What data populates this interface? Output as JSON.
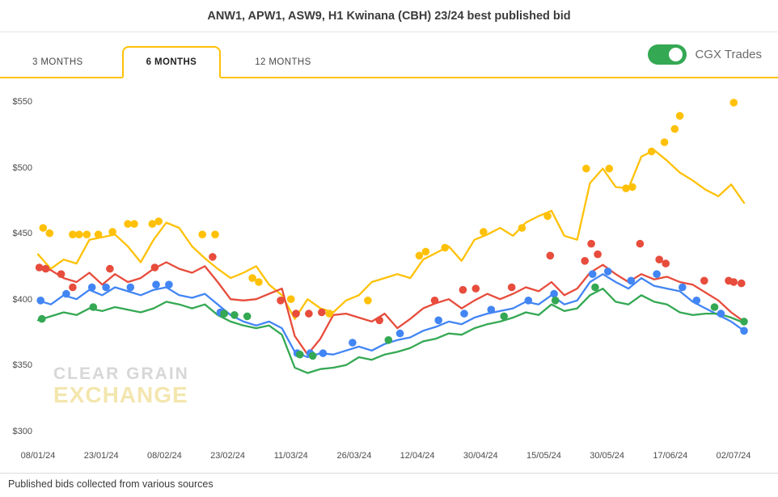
{
  "header": {
    "title": "ANW1, APW1, ASW9, H1 Kwinana (CBH) 23/24 best published bid"
  },
  "tabs": [
    {
      "label": "3 MONTHS",
      "active": false
    },
    {
      "label": "6 MONTHS",
      "active": true
    },
    {
      "label": "12 MONTHS",
      "active": false
    }
  ],
  "toggle": {
    "label": "CGX Trades",
    "state": "on",
    "color": "#34A853"
  },
  "watermark": {
    "line1": "CLEAR GRAIN",
    "line2": "EXCHANGE",
    "line1_color": "#d7d7d7",
    "line2_color": "#f3e6ae"
  },
  "footer": {
    "note": "Published bids collected from various sources"
  },
  "chart_data": {
    "type": "line",
    "title": "ANW1, APW1, ASW9, H1 Kwinana (CBH) 23/24 best published bid",
    "xlabel": "",
    "ylabel": "",
    "ylim": [
      300,
      550
    ],
    "grid": false,
    "legend_position": "none",
    "x_tick_labels": [
      "08/01/24",
      "23/01/24",
      "08/02/24",
      "23/02/24",
      "11/03/24",
      "26/03/24",
      "12/04/24",
      "30/04/24",
      "15/05/24",
      "30/05/24",
      "17/06/24",
      "02/07/24"
    ],
    "y_ticks": [
      {
        "label": "$550",
        "value": 550
      },
      {
        "label": "$500",
        "value": 500
      },
      {
        "label": "$450",
        "value": 450
      },
      {
        "label": "$400",
        "value": 400
      },
      {
        "label": "$350",
        "value": 350
      },
      {
        "label": "$300",
        "value": 300
      }
    ],
    "series": [
      {
        "name": "yellow-line",
        "color": "#FFC107",
        "values": [
          435,
          424,
          431,
          428,
          446,
          448,
          450,
          441,
          429,
          446,
          459,
          455,
          441,
          432,
          424,
          417,
          421,
          426,
          412,
          404,
          386,
          401,
          394,
          391,
          400,
          404,
          414,
          417,
          420,
          417,
          431,
          436,
          441,
          430,
          446,
          450,
          455,
          449,
          459,
          464,
          468,
          449,
          446,
          489,
          500,
          486,
          485,
          509,
          514,
          506,
          497,
          491,
          484,
          479,
          488,
          474
        ]
      },
      {
        "name": "red-line",
        "color": "#E74C3C",
        "values": [
          424,
          423,
          417,
          414,
          421,
          412,
          420,
          414,
          417,
          424,
          429,
          424,
          421,
          426,
          414,
          401,
          400,
          401,
          405,
          409,
          373,
          359,
          371,
          389,
          390,
          387,
          384,
          390,
          379,
          386,
          394,
          398,
          401,
          394,
          400,
          405,
          401,
          405,
          410,
          407,
          414,
          404,
          409,
          421,
          427,
          420,
          414,
          420,
          416,
          418,
          414,
          412,
          406,
          400,
          391,
          384
        ]
      },
      {
        "name": "blue-line",
        "color": "#4285F4",
        "values": [
          400,
          397,
          404,
          401,
          408,
          404,
          410,
          407,
          404,
          408,
          410,
          404,
          402,
          405,
          397,
          389,
          384,
          381,
          384,
          379,
          361,
          357,
          360,
          359,
          362,
          365,
          362,
          367,
          370,
          372,
          377,
          380,
          384,
          382,
          387,
          390,
          392,
          394,
          399,
          397,
          404,
          397,
          400,
          414,
          420,
          414,
          409,
          417,
          411,
          409,
          407,
          399,
          394,
          389,
          384,
          377
        ]
      },
      {
        "name": "green-line",
        "color": "#34A853",
        "values": [
          385,
          388,
          391,
          389,
          394,
          392,
          395,
          393,
          391,
          394,
          399,
          397,
          394,
          397,
          389,
          384,
          381,
          379,
          381,
          374,
          349,
          345,
          348,
          349,
          351,
          357,
          355,
          359,
          361,
          364,
          369,
          371,
          375,
          374,
          379,
          382,
          384,
          387,
          391,
          389,
          397,
          392,
          394,
          404,
          409,
          399,
          397,
          404,
          399,
          397,
          391,
          389,
          390,
          390,
          387,
          383
        ]
      }
    ],
    "scatter": [
      {
        "name": "yellow-trades",
        "color": "#FFC107",
        "points": [
          [
            0.4,
            455
          ],
          [
            0.9,
            451
          ],
          [
            2.7,
            450
          ],
          [
            3.2,
            450
          ],
          [
            3.8,
            450
          ],
          [
            4.7,
            450
          ],
          [
            5.8,
            452
          ],
          [
            7.0,
            458
          ],
          [
            7.5,
            458
          ],
          [
            8.9,
            458
          ],
          [
            9.4,
            460
          ],
          [
            12.8,
            450
          ],
          [
            13.8,
            450
          ],
          [
            16.7,
            417
          ],
          [
            17.2,
            414
          ],
          [
            19.7,
            401
          ],
          [
            22.7,
            390
          ],
          [
            25.7,
            400
          ],
          [
            29.7,
            434
          ],
          [
            30.2,
            437
          ],
          [
            31.7,
            440
          ],
          [
            34.7,
            452
          ],
          [
            37.7,
            455
          ],
          [
            39.7,
            464
          ],
          [
            42.7,
            500
          ],
          [
            44.5,
            500
          ],
          [
            45.8,
            485
          ],
          [
            46.3,
            486
          ],
          [
            47.8,
            513
          ],
          [
            48.8,
            520
          ],
          [
            49.6,
            530
          ],
          [
            50.0,
            540
          ],
          [
            54.2,
            550
          ]
        ]
      },
      {
        "name": "red-trades",
        "color": "#E74C3C",
        "points": [
          [
            0.1,
            425
          ],
          [
            0.6,
            424
          ],
          [
            1.8,
            420
          ],
          [
            2.7,
            410
          ],
          [
            5.6,
            424
          ],
          [
            9.1,
            425
          ],
          [
            13.6,
            433
          ],
          [
            18.9,
            400
          ],
          [
            20.1,
            390
          ],
          [
            21.1,
            390
          ],
          [
            22.1,
            391
          ],
          [
            26.6,
            385
          ],
          [
            30.9,
            400
          ],
          [
            33.1,
            408
          ],
          [
            34.1,
            409
          ],
          [
            36.9,
            410
          ],
          [
            39.9,
            434
          ],
          [
            42.6,
            430
          ],
          [
            43.1,
            443
          ],
          [
            43.6,
            435
          ],
          [
            46.9,
            443
          ],
          [
            48.4,
            431
          ],
          [
            48.9,
            428
          ],
          [
            51.9,
            415
          ],
          [
            53.8,
            415
          ],
          [
            54.2,
            414
          ],
          [
            54.8,
            413
          ]
        ]
      },
      {
        "name": "blue-trades",
        "color": "#4285F4",
        "points": [
          [
            0.2,
            400
          ],
          [
            2.2,
            405
          ],
          [
            4.2,
            410
          ],
          [
            5.3,
            410
          ],
          [
            7.2,
            410
          ],
          [
            9.2,
            412
          ],
          [
            10.2,
            412
          ],
          [
            14.2,
            391
          ],
          [
            20.2,
            360
          ],
          [
            21.2,
            360
          ],
          [
            22.2,
            360
          ],
          [
            24.5,
            368
          ],
          [
            28.2,
            375
          ],
          [
            31.2,
            385
          ],
          [
            33.2,
            390
          ],
          [
            35.3,
            393
          ],
          [
            38.2,
            400
          ],
          [
            40.2,
            405
          ],
          [
            43.2,
            420
          ],
          [
            44.4,
            422
          ],
          [
            46.2,
            415
          ],
          [
            48.2,
            420
          ],
          [
            50.2,
            410
          ],
          [
            51.3,
            400
          ],
          [
            53.2,
            390
          ],
          [
            55.0,
            377
          ]
        ]
      },
      {
        "name": "green-trades",
        "color": "#34A853",
        "points": [
          [
            0.3,
            386
          ],
          [
            4.3,
            395
          ],
          [
            14.5,
            390
          ],
          [
            15.3,
            389
          ],
          [
            16.3,
            388
          ],
          [
            20.4,
            359
          ],
          [
            21.4,
            358
          ],
          [
            27.3,
            370
          ],
          [
            36.3,
            388
          ],
          [
            40.3,
            400
          ],
          [
            43.4,
            410
          ],
          [
            52.7,
            395
          ],
          [
            55.0,
            384
          ]
        ]
      }
    ]
  }
}
